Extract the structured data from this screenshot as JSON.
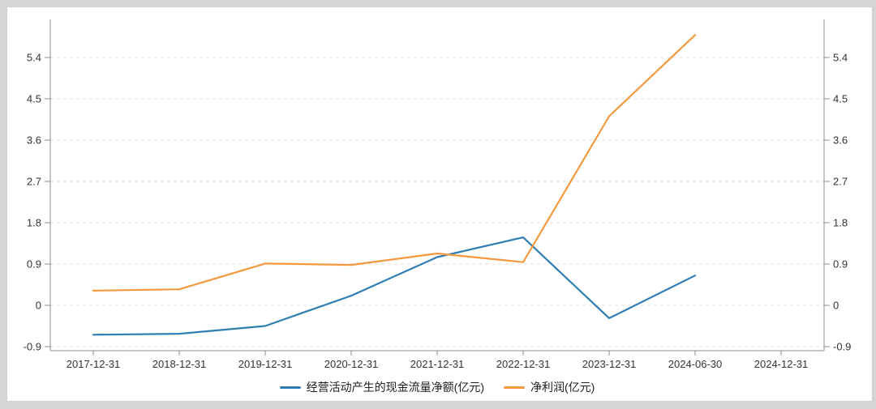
{
  "chart_data": {
    "type": "line",
    "title": "",
    "xlabel": "",
    "ylabel": "",
    "categories": [
      "2017-12-31",
      "2018-12-31",
      "2019-12-31",
      "2020-12-31",
      "2021-12-31",
      "2022-12-31",
      "2023-12-31",
      "2024-06-30",
      "2024-12-31"
    ],
    "series": [
      {
        "name": "经营活动产生的现金流量净额(亿元)",
        "color": "#2e7eb3",
        "values": [
          -0.64,
          -0.62,
          -0.45,
          0.21,
          1.05,
          1.48,
          -0.28,
          0.65,
          null
        ]
      },
      {
        "name": "净利润(亿元)",
        "color": "#f4993e",
        "values": [
          0.32,
          0.35,
          0.91,
          0.88,
          1.13,
          0.94,
          4.12,
          5.89,
          null
        ]
      }
    ],
    "y_ticks": [
      5.4,
      4.5,
      3.6,
      2.7,
      1.8,
      0.9,
      0,
      -0.9
    ],
    "y_tick_labels": [
      "5.4",
      "4.5",
      "3.6",
      "2.7",
      "1.8",
      "0.9",
      "0",
      "-0.9"
    ],
    "ylim": [
      -1.0,
      6.25
    ],
    "dual_y_axis": true,
    "grid": true,
    "grid_style": "dashed",
    "legend_position": "bottom-center"
  },
  "style": {
    "axis_color": "#8c8c8c",
    "grid_color": "#dedede",
    "label_color": "#333333",
    "panel_background": "#ffffff",
    "frame_background": "#d6d6d6"
  }
}
